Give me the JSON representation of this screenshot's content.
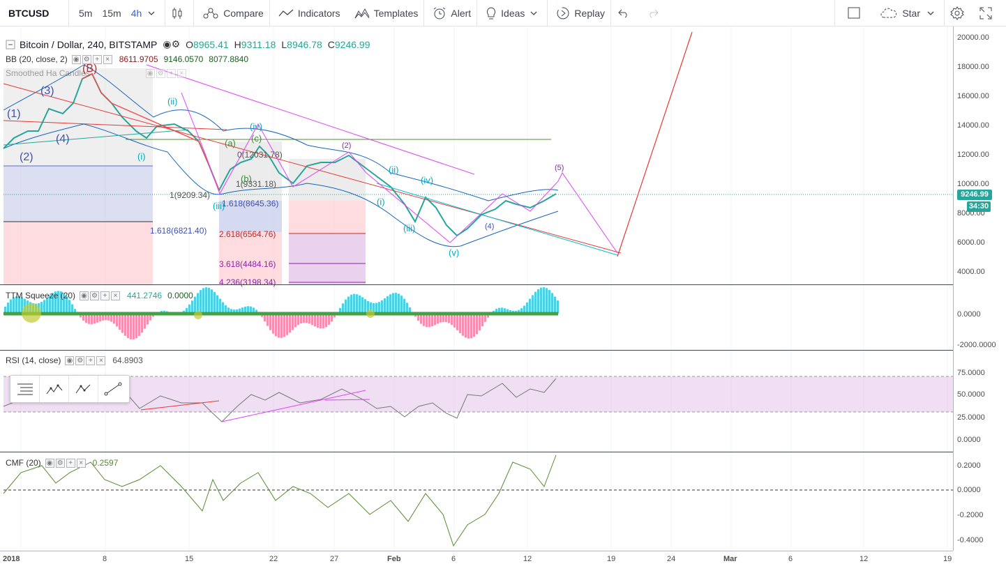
{
  "toolbar": {
    "symbol": "BTCUSD",
    "intervals": [
      "5m",
      "15m",
      "4h"
    ],
    "active_interval": "4h",
    "compare_label": "Compare",
    "indicators_label": "Indicators",
    "templates_label": "Templates",
    "alert_label": "Alert",
    "ideas_label": "Ideas",
    "replay_label": "Replay",
    "star_label": "Star"
  },
  "main_pane": {
    "title": "Bitcoin / Dollar, 240, BITSTAMP",
    "open_key": "O",
    "open": "8965.41",
    "high_key": "H",
    "high": "9311.18",
    "low_key": "L",
    "low": "8946.78",
    "close_key": "C",
    "close": "9246.99",
    "bb_label": "BB (20, close, 2)",
    "bb_values": [
      "8611.9705",
      "9146.0570",
      "8077.8840"
    ],
    "ha_label": "Smoothed Ha Candles",
    "current_price": "9246.99",
    "countdown": "34:30",
    "price_axis": [
      "20000.00",
      "18000.00",
      "16000.00",
      "14000.00",
      "12000.00",
      "10000.00",
      "8000.00",
      "6000.00",
      "4000.00"
    ],
    "fib_labels": [
      "1.618(6821.40)",
      "2.618(6564.76)",
      "3.618(4484.16)",
      "4.236(3198.34)",
      "1.618(8645.36)",
      "1(9209.34)",
      "1(9331.18)",
      "0(12031.78)"
    ],
    "wave_labels": [
      "(B)",
      "(3)",
      "(1)",
      "(2)",
      "(4)",
      "(ii)",
      "(iv)",
      "(iii)",
      "(i)",
      "(a)",
      "(b)",
      "(c)",
      "(v)",
      "(2)",
      "(4)",
      "(5)",
      "(ii)",
      "(iv)",
      "(i)",
      "(iii)"
    ]
  },
  "ttm": {
    "label": "TTM Squeeze (20)",
    "values": [
      "441.2746",
      "0.0000"
    ],
    "axis": [
      "0.0000",
      "-2000.0000"
    ]
  },
  "rsi": {
    "label": "RSI (14, close)",
    "value": "64.8903",
    "axis": [
      "75.0000",
      "50.0000",
      "25.0000",
      "0.0000"
    ]
  },
  "cmf": {
    "label": "CMF (20)",
    "value": "0.2597",
    "axis": [
      "0.2000",
      "0.0000",
      "-0.2000",
      "-0.4000"
    ]
  },
  "time_axis": [
    "2018",
    "8",
    "15",
    "22",
    "27",
    "Feb",
    "6",
    "12",
    "19",
    "24",
    "Mar",
    "6",
    "12",
    "19"
  ],
  "colors": {
    "up": "#26a69a",
    "down": "#ef5350",
    "accent": "#2962ff",
    "wave_magenta": "#e040fb",
    "trend_red": "#e53935"
  }
}
